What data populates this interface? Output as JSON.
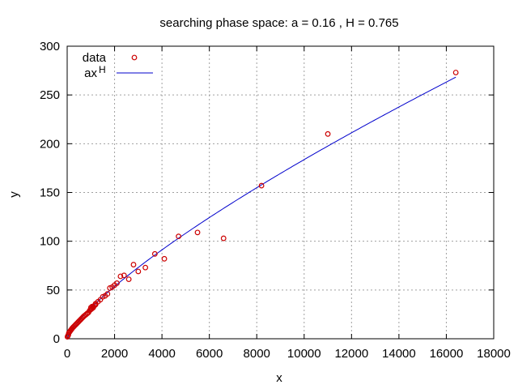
{
  "chart_data": {
    "type": "scatter",
    "title": "searching phase space: a = 0.16 , H = 0.765",
    "xlabel": "x",
    "ylabel": "y",
    "xlim": [
      0,
      18000
    ],
    "ylim": [
      0,
      300
    ],
    "xticks": [
      0,
      2000,
      4000,
      6000,
      8000,
      10000,
      12000,
      14000,
      16000,
      18000
    ],
    "yticks": [
      0,
      50,
      100,
      150,
      200,
      250,
      300
    ],
    "grid": true,
    "legend_position": "top-left",
    "series": [
      {
        "name": "data",
        "kind": "points",
        "color": "#cc0000",
        "points": [
          [
            10,
            2
          ],
          [
            30,
            3
          ],
          [
            50,
            4
          ],
          [
            70,
            6
          ],
          [
            100,
            7
          ],
          [
            130,
            8
          ],
          [
            160,
            9
          ],
          [
            190,
            10
          ],
          [
            220,
            11
          ],
          [
            260,
            12
          ],
          [
            300,
            13
          ],
          [
            340,
            14
          ],
          [
            380,
            15
          ],
          [
            420,
            16
          ],
          [
            460,
            17
          ],
          [
            500,
            18
          ],
          [
            540,
            19
          ],
          [
            580,
            20
          ],
          [
            620,
            21
          ],
          [
            660,
            22
          ],
          [
            700,
            23
          ],
          [
            750,
            24
          ],
          [
            800,
            25
          ],
          [
            850,
            26
          ],
          [
            900,
            27
          ],
          [
            950,
            29
          ],
          [
            1000,
            30
          ],
          [
            1050,
            31
          ],
          [
            1100,
            33
          ],
          [
            1150,
            34
          ],
          [
            1200,
            35
          ],
          [
            1000,
            32
          ],
          [
            1050,
            33
          ],
          [
            1100,
            32
          ],
          [
            1200,
            36
          ],
          [
            1300,
            38
          ],
          [
            1400,
            40
          ],
          [
            1500,
            43
          ],
          [
            1600,
            44
          ],
          [
            1700,
            46
          ],
          [
            1800,
            52
          ],
          [
            1900,
            53
          ],
          [
            2000,
            55
          ],
          [
            2100,
            57
          ],
          [
            2250,
            64
          ],
          [
            2400,
            65
          ],
          [
            2600,
            61
          ],
          [
            2800,
            76
          ],
          [
            3000,
            69
          ],
          [
            3300,
            73
          ],
          [
            3700,
            87
          ],
          [
            4100,
            82
          ],
          [
            4700,
            105
          ],
          [
            5500,
            109
          ],
          [
            6600,
            103
          ],
          [
            8200,
            157
          ],
          [
            11000,
            210
          ],
          [
            16400,
            273
          ]
        ]
      },
      {
        "name": "ax",
        "name_sup": "H",
        "kind": "line",
        "color": "#0000cc",
        "a": 0.16,
        "H": 0.765,
        "x_range": [
          1,
          16400
        ]
      }
    ]
  }
}
